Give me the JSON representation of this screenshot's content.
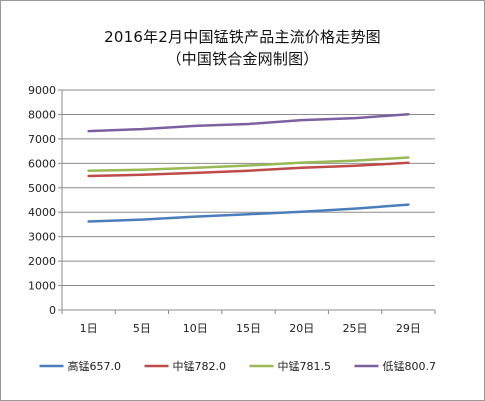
{
  "chart_data": {
    "type": "line",
    "title": "2016年2月中国锰铁产品主流价格走势图",
    "subtitle": "（中国铁合金网制图）",
    "xlabel": "",
    "ylabel": "",
    "categories": [
      "1日",
      "5日",
      "10日",
      "15日",
      "20日",
      "25日",
      "29日"
    ],
    "ylim": [
      0,
      9000
    ],
    "ytick_step": 1000,
    "yticks": [
      "0",
      "1000",
      "2000",
      "3000",
      "4000",
      "5000",
      "6000",
      "7000",
      "8000",
      "9000"
    ],
    "grid": true,
    "legend_position": "bottom",
    "series": [
      {
        "name": "高锰657.0",
        "color": "#4a7ebb",
        "values": [
          3620,
          3700,
          3820,
          3920,
          4020,
          4150,
          4310
        ]
      },
      {
        "name": "中锰782.0",
        "color": "#be4b48",
        "values": [
          5480,
          5530,
          5610,
          5700,
          5820,
          5900,
          6020
        ]
      },
      {
        "name": "中锰781.5",
        "color": "#98b954",
        "values": [
          5700,
          5740,
          5820,
          5910,
          6030,
          6110,
          6240
        ]
      },
      {
        "name": "低锰800.7",
        "color": "#7d60a0",
        "values": [
          7320,
          7400,
          7530,
          7610,
          7770,
          7850,
          8010
        ]
      }
    ]
  }
}
